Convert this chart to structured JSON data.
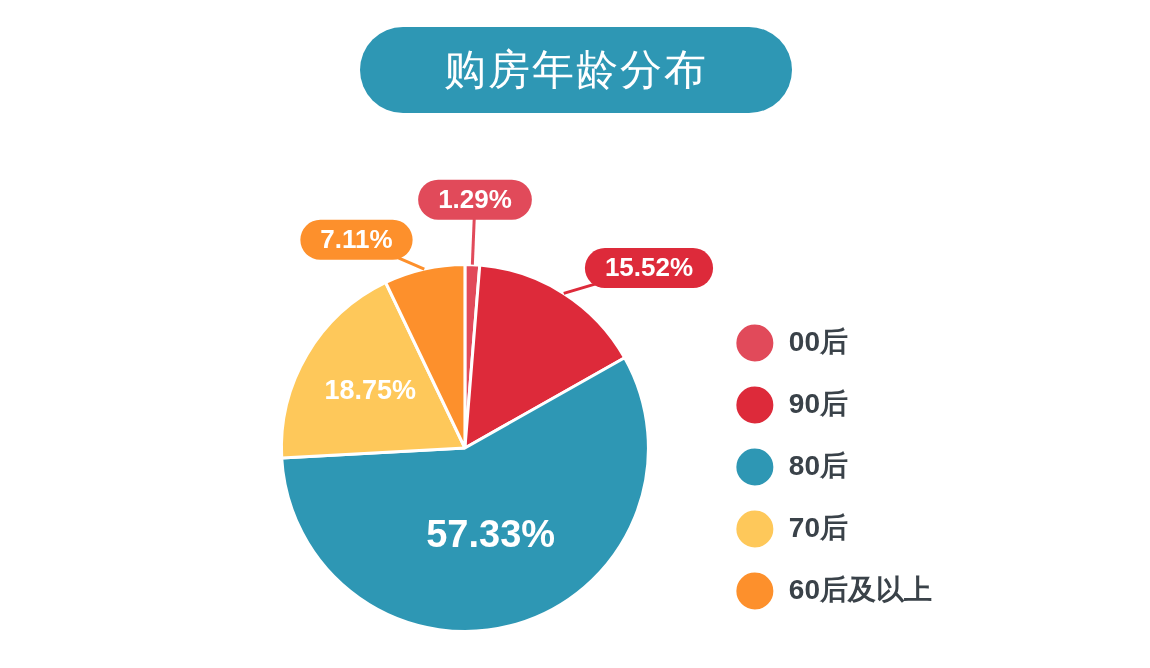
{
  "chart_data": {
    "type": "pie",
    "title": "购房年龄分布",
    "categories": [
      "00后",
      "90后",
      "80后",
      "70后",
      "60后及以上"
    ],
    "values": [
      1.29,
      15.52,
      57.33,
      18.75,
      7.11
    ],
    "colors": [
      "#e14a5a",
      "#dd2a3a",
      "#2e97b4",
      "#fec85a",
      "#fd902c"
    ],
    "value_labels": [
      "1.29%",
      "15.52%",
      "57.33%",
      "18.75%",
      "7.11%"
    ],
    "legend": "right"
  }
}
